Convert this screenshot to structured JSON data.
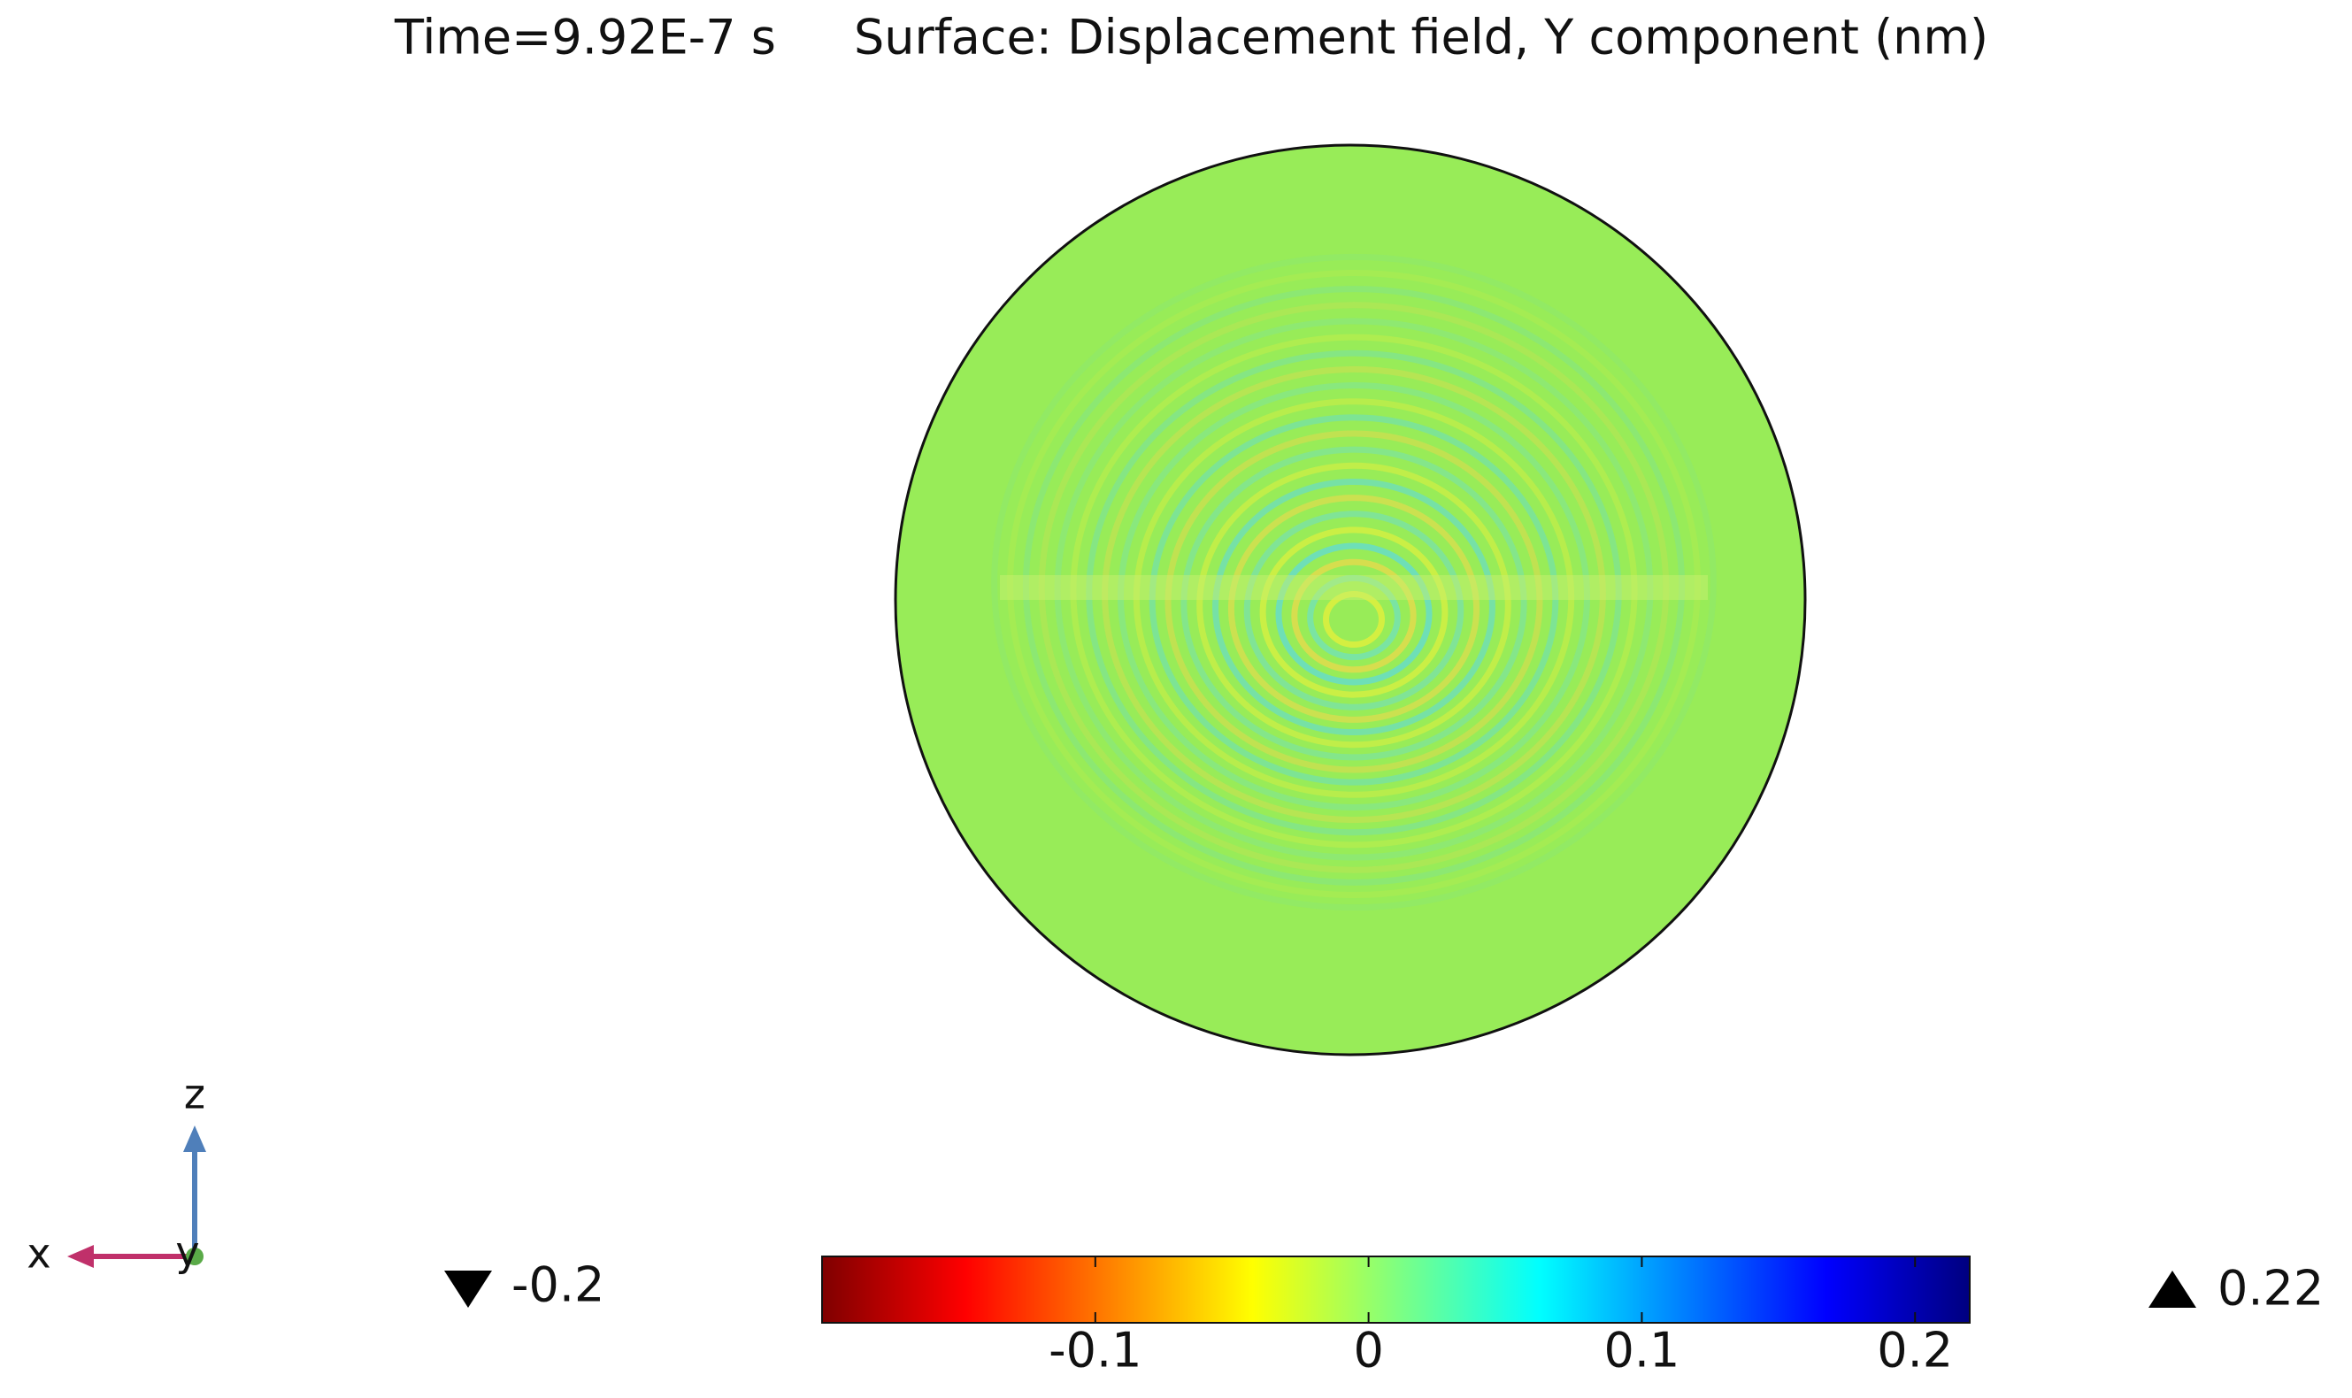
{
  "chart_data": {
    "type": "surface",
    "time_label": "Time=9.92E-7 s",
    "title": "Surface: Displacement field, Y component (nm)",
    "clim": [
      -0.2,
      0.22
    ],
    "cticks": [
      -0.1,
      0,
      0.1,
      0.2
    ],
    "min_value": -0.2,
    "max_value": 0.22,
    "colormap": [
      "#7f0000",
      "#ff0000",
      "#ff8000",
      "#ffff00",
      "#80ff80",
      "#00ffff",
      "#0080ff",
      "#0000ff",
      "#00007f"
    ],
    "axes_triad": [
      "x",
      "y",
      "z"
    ]
  }
}
